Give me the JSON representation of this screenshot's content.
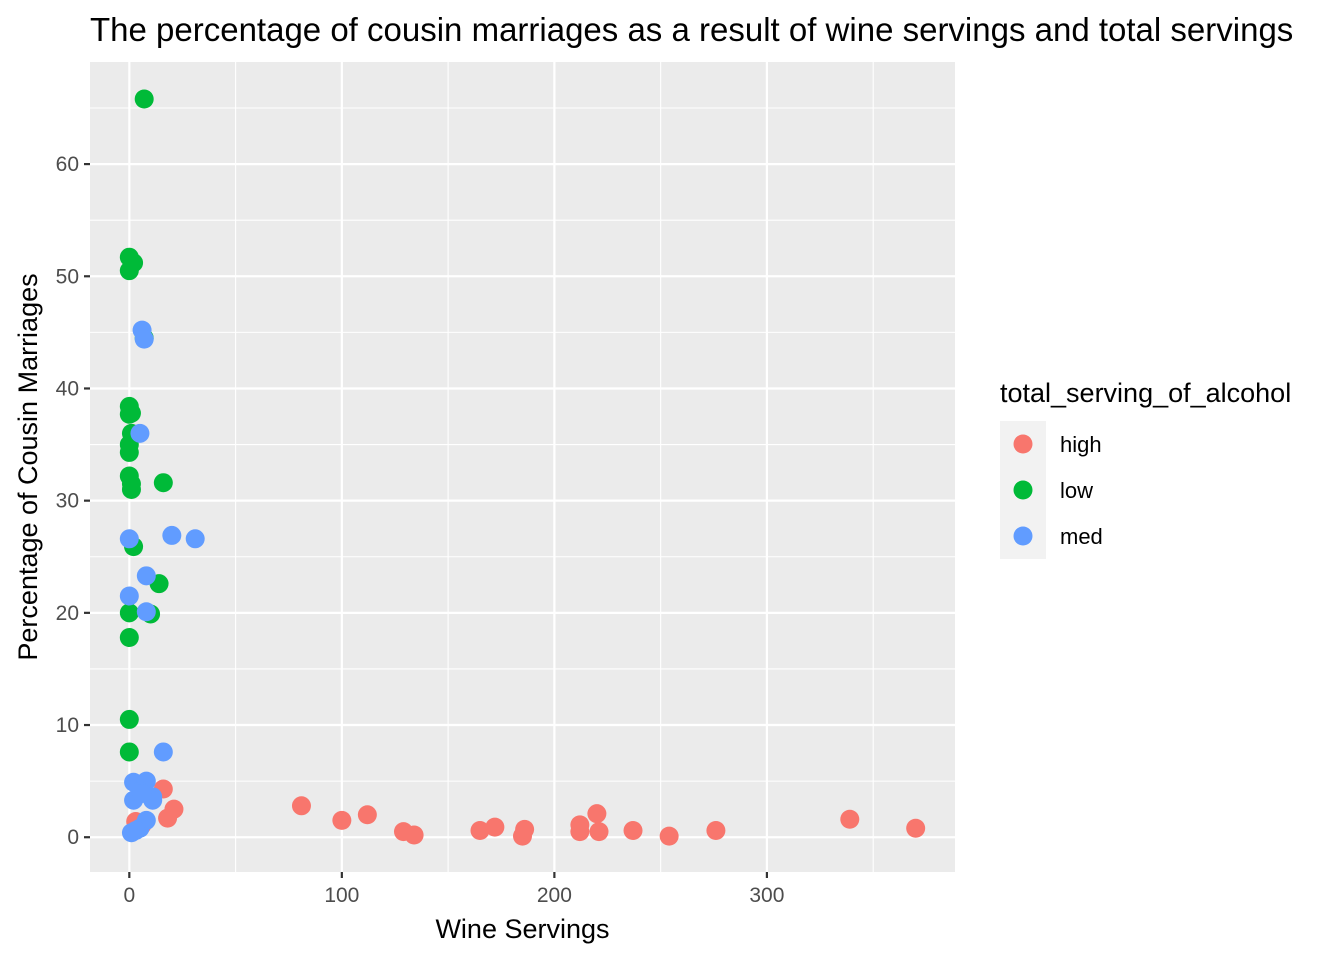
{
  "chart_data": {
    "type": "scatter",
    "title": "The percentage of cousin marriages as a result of wine servings and total servings",
    "xlabel": "Wine Servings",
    "ylabel": "Percentage of Cousin Marriages",
    "xlim": [
      -18.5,
      388.5
    ],
    "ylim": [
      -3.1,
      69.1
    ],
    "x_ticks": [
      0,
      100,
      200,
      300
    ],
    "y_ticks": [
      0,
      10,
      20,
      30,
      40,
      50,
      60
    ],
    "grid": true,
    "legend": {
      "title": "total_serving_of_alcohol",
      "position": "right"
    },
    "colors": {
      "panel_background": "#EBEBEB",
      "grid": "#FFFFFF",
      "high": "#F8766D",
      "low": "#00BA38",
      "med": "#619CFF"
    },
    "series": [
      {
        "name": "high",
        "color": "#F8766D",
        "points": [
          [
            81,
            2.8
          ],
          [
            100,
            1.5
          ],
          [
            112,
            2.0
          ],
          [
            129,
            0.5
          ],
          [
            134,
            0.2
          ],
          [
            165,
            0.6
          ],
          [
            172,
            0.9
          ],
          [
            185,
            0.1
          ],
          [
            186,
            0.7
          ],
          [
            212,
            1.1
          ],
          [
            212,
            0.5
          ],
          [
            220,
            2.1
          ],
          [
            221,
            0.5
          ],
          [
            237,
            0.6
          ],
          [
            254,
            0.1
          ],
          [
            276,
            0.6
          ],
          [
            339,
            1.6
          ],
          [
            370,
            0.8
          ],
          [
            16,
            4.3
          ],
          [
            21,
            2.5
          ],
          [
            18,
            1.7
          ],
          [
            3,
            1.4
          ],
          [
            6,
            1.1
          ]
        ]
      },
      {
        "name": "low",
        "color": "#00BA38",
        "points": [
          [
            7,
            65.8
          ],
          [
            0,
            51.7
          ],
          [
            2,
            51.2
          ],
          [
            0,
            50.5
          ],
          [
            0,
            38.4
          ],
          [
            0,
            37.7
          ],
          [
            1,
            37.8
          ],
          [
            1,
            36.0
          ],
          [
            0,
            35.0
          ],
          [
            0,
            34.3
          ],
          [
            0,
            32.2
          ],
          [
            1,
            31.5
          ],
          [
            1,
            31.0
          ],
          [
            16,
            31.6
          ],
          [
            2,
            25.9
          ],
          [
            14,
            22.6
          ],
          [
            0,
            20.0
          ],
          [
            10,
            19.9
          ],
          [
            0,
            17.8
          ],
          [
            0,
            10.5
          ],
          [
            0,
            7.6
          ],
          [
            7,
            44.5
          ]
        ]
      },
      {
        "name": "med",
        "color": "#619CFF",
        "points": [
          [
            6,
            45.2
          ],
          [
            7,
            44.4
          ],
          [
            5,
            36.0
          ],
          [
            0,
            26.6
          ],
          [
            20,
            26.9
          ],
          [
            31,
            26.6
          ],
          [
            8,
            23.3
          ],
          [
            0,
            21.5
          ],
          [
            8,
            20.1
          ],
          [
            16,
            7.6
          ],
          [
            2,
            4.9
          ],
          [
            8,
            5.0
          ],
          [
            2,
            3.3
          ],
          [
            5,
            4.1
          ],
          [
            11,
            3.6
          ],
          [
            11,
            3.3
          ],
          [
            8,
            1.5
          ],
          [
            5,
            0.8
          ],
          [
            1,
            0.4
          ],
          [
            3,
            0.6
          ],
          [
            6,
            3.9
          ]
        ]
      }
    ]
  }
}
